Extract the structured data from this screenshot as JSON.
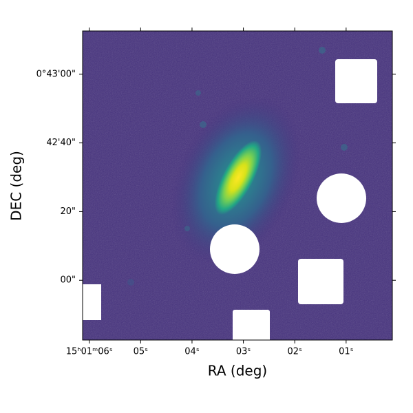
{
  "chart_data": {
    "type": "image",
    "xlabel": "RA (deg)",
    "ylabel": "DEC (deg)",
    "xlim": [
      6.13,
      0.1
    ],
    "ylim": [
      -17.4,
      72.6
    ],
    "xticks": [
      {
        "value": 6,
        "label": "15ʰ01ᵐ06ˢ"
      },
      {
        "value": 5,
        "label": "05ˢ"
      },
      {
        "value": 4,
        "label": "04ˢ"
      },
      {
        "value": 3,
        "label": "03ˢ"
      },
      {
        "value": 2,
        "label": "02ˢ"
      },
      {
        "value": 1,
        "label": "01ˢ"
      }
    ],
    "yticks": [
      {
        "value": 60,
        "label": "0°43'00\""
      },
      {
        "value": 40,
        "label": "42'40\""
      },
      {
        "value": 20,
        "label": "20\""
      },
      {
        "value": 0,
        "label": "00\""
      }
    ]
  }
}
